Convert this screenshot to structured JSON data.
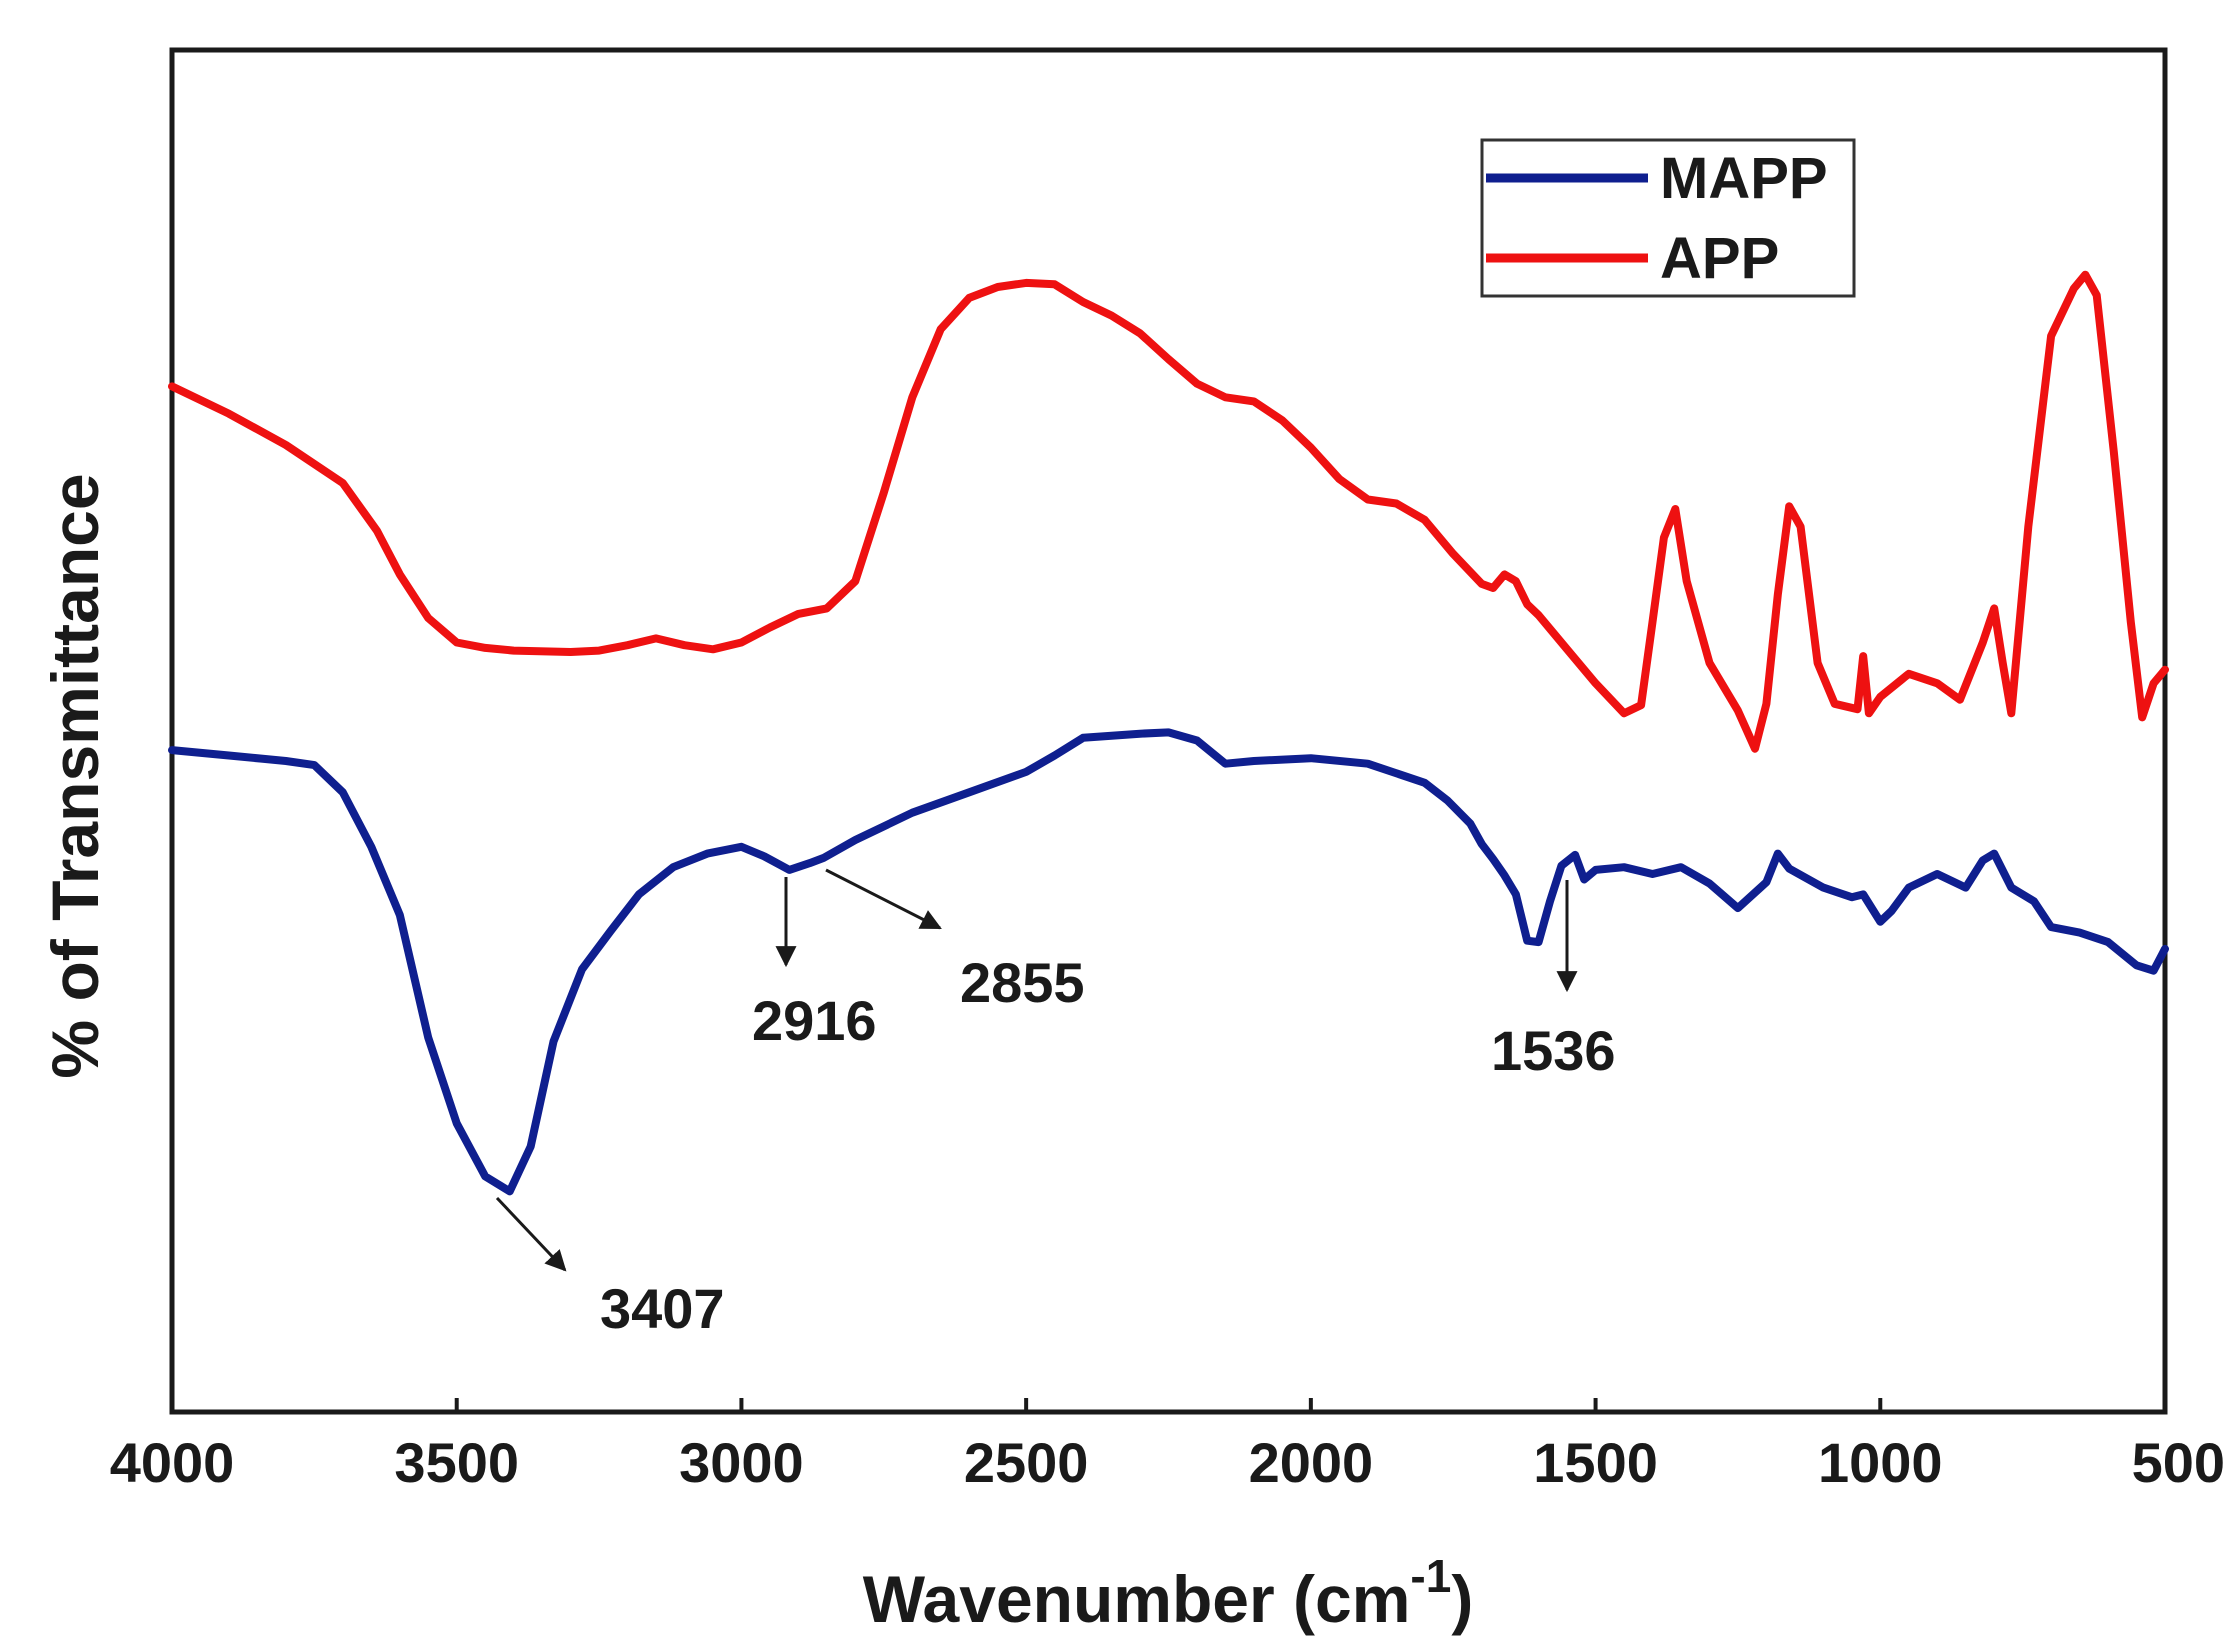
{
  "chart_data": {
    "type": "line",
    "title": "",
    "xlabel": "Wavenumber (cm",
    "xlabel_superscript": "-1",
    "xlabel_close": ")",
    "ylabel": "% of Transmittance",
    "xlim": [
      4000,
      500
    ],
    "ylim": [
      0,
      100
    ],
    "x_reversed": true,
    "xticks": [
      "4000",
      "3500",
      "3000",
      "2500",
      "2000",
      "1500",
      "1000",
      "500"
    ],
    "legend_position": "top-right",
    "grid": false,
    "colors": {
      "MAPP": "#0f1f8f",
      "APP": "#ee1111",
      "axis": "#1a1a1a",
      "annotation": "#1a1a1a"
    },
    "series": [
      {
        "name": "MAPP",
        "points": [
          [
            4000,
            48.6
          ],
          [
            3900,
            48.2
          ],
          [
            3800,
            47.8
          ],
          [
            3750,
            47.5
          ],
          [
            3700,
            45.5
          ],
          [
            3650,
            41.5
          ],
          [
            3600,
            36.5
          ],
          [
            3550,
            27.5
          ],
          [
            3500,
            21.2
          ],
          [
            3450,
            17.3
          ],
          [
            3407,
            16.2
          ],
          [
            3370,
            19.5
          ],
          [
            3330,
            27.2
          ],
          [
            3280,
            32.5
          ],
          [
            3230,
            35.3
          ],
          [
            3180,
            38.0
          ],
          [
            3120,
            40.0
          ],
          [
            3060,
            41.0
          ],
          [
            3000,
            41.5
          ],
          [
            2960,
            40.8
          ],
          [
            2916,
            39.8
          ],
          [
            2880,
            40.3
          ],
          [
            2855,
            40.7
          ],
          [
            2800,
            42.0
          ],
          [
            2700,
            44.0
          ],
          [
            2600,
            45.5
          ],
          [
            2500,
            47.0
          ],
          [
            2450,
            48.2
          ],
          [
            2400,
            49.5
          ],
          [
            2300,
            49.8
          ],
          [
            2250,
            49.9
          ],
          [
            2200,
            49.3
          ],
          [
            2150,
            47.6
          ],
          [
            2100,
            47.8
          ],
          [
            2000,
            48.0
          ],
          [
            1900,
            47.6
          ],
          [
            1800,
            46.2
          ],
          [
            1760,
            44.9
          ],
          [
            1720,
            43.2
          ],
          [
            1700,
            41.7
          ],
          [
            1680,
            40.6
          ],
          [
            1660,
            39.4
          ],
          [
            1640,
            38.0
          ],
          [
            1620,
            34.6
          ],
          [
            1600,
            34.5
          ],
          [
            1580,
            37.5
          ],
          [
            1560,
            40.1
          ],
          [
            1536,
            40.9
          ],
          [
            1520,
            39.1
          ],
          [
            1500,
            39.8
          ],
          [
            1450,
            40.0
          ],
          [
            1400,
            39.5
          ],
          [
            1350,
            40.0
          ],
          [
            1300,
            38.8
          ],
          [
            1250,
            37.0
          ],
          [
            1200,
            38.9
          ],
          [
            1180,
            41.0
          ],
          [
            1160,
            39.9
          ],
          [
            1100,
            38.5
          ],
          [
            1050,
            37.8
          ],
          [
            1030,
            38.0
          ],
          [
            1000,
            36.0
          ],
          [
            980,
            36.8
          ],
          [
            950,
            38.5
          ],
          [
            900,
            39.5
          ],
          [
            850,
            38.5
          ],
          [
            820,
            40.5
          ],
          [
            800,
            41.0
          ],
          [
            770,
            38.5
          ],
          [
            730,
            37.5
          ],
          [
            700,
            35.6
          ],
          [
            650,
            35.2
          ],
          [
            600,
            34.5
          ],
          [
            550,
            32.8
          ],
          [
            520,
            32.4
          ],
          [
            500,
            34.0
          ]
        ]
      },
      {
        "name": "APP",
        "points": [
          [
            4000,
            75.3
          ],
          [
            3900,
            73.3
          ],
          [
            3800,
            71.0
          ],
          [
            3700,
            68.2
          ],
          [
            3640,
            64.7
          ],
          [
            3600,
            61.5
          ],
          [
            3550,
            58.3
          ],
          [
            3500,
            56.5
          ],
          [
            3450,
            56.1
          ],
          [
            3400,
            55.9
          ],
          [
            3300,
            55.8
          ],
          [
            3250,
            55.9
          ],
          [
            3200,
            56.3
          ],
          [
            3150,
            56.8
          ],
          [
            3100,
            56.3
          ],
          [
            3050,
            56.0
          ],
          [
            3000,
            56.5
          ],
          [
            2950,
            57.6
          ],
          [
            2900,
            58.6
          ],
          [
            2850,
            59.0
          ],
          [
            2800,
            61.0
          ],
          [
            2750,
            67.5
          ],
          [
            2700,
            74.5
          ],
          [
            2650,
            79.5
          ],
          [
            2600,
            81.8
          ],
          [
            2550,
            82.6
          ],
          [
            2500,
            82.9
          ],
          [
            2450,
            82.8
          ],
          [
            2400,
            81.5
          ],
          [
            2350,
            80.5
          ],
          [
            2300,
            79.2
          ],
          [
            2250,
            77.3
          ],
          [
            2200,
            75.5
          ],
          [
            2150,
            74.5
          ],
          [
            2100,
            74.2
          ],
          [
            2050,
            72.8
          ],
          [
            2000,
            70.8
          ],
          [
            1950,
            68.5
          ],
          [
            1900,
            67.0
          ],
          [
            1850,
            66.7
          ],
          [
            1800,
            65.5
          ],
          [
            1750,
            63.0
          ],
          [
            1700,
            60.8
          ],
          [
            1680,
            60.5
          ],
          [
            1660,
            61.5
          ],
          [
            1640,
            61.0
          ],
          [
            1620,
            59.3
          ],
          [
            1600,
            58.5
          ],
          [
            1550,
            56.0
          ],
          [
            1500,
            53.5
          ],
          [
            1450,
            51.3
          ],
          [
            1420,
            51.9
          ],
          [
            1400,
            58.0
          ],
          [
            1380,
            64.2
          ],
          [
            1360,
            66.3
          ],
          [
            1340,
            61.0
          ],
          [
            1300,
            55.0
          ],
          [
            1250,
            51.5
          ],
          [
            1220,
            48.7
          ],
          [
            1200,
            52.0
          ],
          [
            1180,
            60.0
          ],
          [
            1160,
            66.5
          ],
          [
            1140,
            65.0
          ],
          [
            1110,
            55.0
          ],
          [
            1080,
            52.0
          ],
          [
            1040,
            51.6
          ],
          [
            1030,
            55.5
          ],
          [
            1020,
            51.3
          ],
          [
            1000,
            52.5
          ],
          [
            950,
            54.2
          ],
          [
            900,
            53.5
          ],
          [
            860,
            52.3
          ],
          [
            820,
            56.5
          ],
          [
            800,
            59.0
          ],
          [
            785,
            55.0
          ],
          [
            770,
            51.3
          ],
          [
            740,
            65.0
          ],
          [
            700,
            79.0
          ],
          [
            660,
            82.5
          ],
          [
            640,
            83.5
          ],
          [
            620,
            82.0
          ],
          [
            590,
            70.5
          ],
          [
            560,
            58.0
          ],
          [
            540,
            51.0
          ],
          [
            520,
            53.5
          ],
          [
            500,
            54.5
          ]
        ]
      }
    ],
    "annotations": [
      {
        "label": "3407",
        "series": "MAPP",
        "x": 3407
      },
      {
        "label": "2916",
        "series": "MAPP",
        "x": 2916
      },
      {
        "label": "2855",
        "series": "MAPP",
        "x": 2855
      },
      {
        "label": "1536",
        "series": "MAPP",
        "x": 1536
      }
    ]
  }
}
